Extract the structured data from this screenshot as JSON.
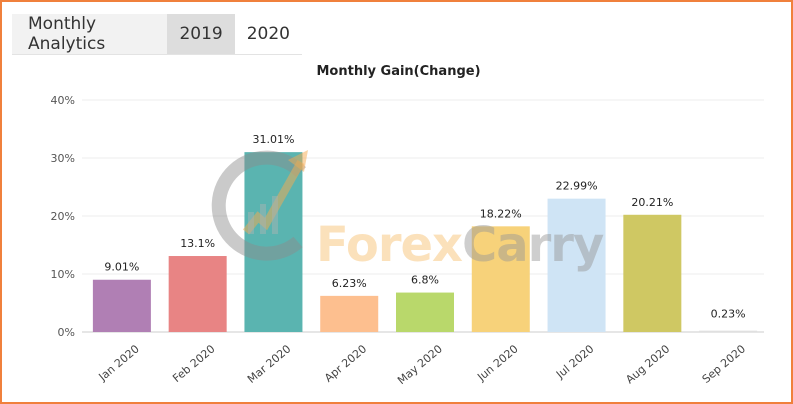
{
  "header": {
    "title": "Monthly Analytics",
    "tabs": [
      {
        "label": "2019",
        "active": true
      },
      {
        "label": "2020",
        "active": false
      }
    ]
  },
  "watermark": {
    "word1": "Forex",
    "word2": "Carry"
  },
  "chart_data": {
    "type": "bar",
    "title": "Monthly Gain(Change)",
    "xlabel": "",
    "ylabel": "",
    "categories": [
      "Jan 2020",
      "Feb 2020",
      "Mar 2020",
      "Apr 2020",
      "May 2020",
      "Jun 2020",
      "Jul 2020",
      "Aug 2020",
      "Sep 2020"
    ],
    "values": [
      9.01,
      13.1,
      31.01,
      6.23,
      6.8,
      18.22,
      22.99,
      20.21,
      0.23
    ],
    "data_labels": [
      "9.01%",
      "13.1%",
      "31.01%",
      "6.23%",
      "6.8%",
      "18.22%",
      "22.99%",
      "20.21%",
      "0.23%"
    ],
    "colors": [
      "#b07fb4",
      "#e88484",
      "#5ab4b0",
      "#fdbf8f",
      "#b9d86b",
      "#f7d27a",
      "#cfe4f5",
      "#cfc863",
      "#e0e0e0"
    ],
    "ylim": [
      0,
      40
    ],
    "yticks": [
      0,
      10,
      20,
      30,
      40
    ],
    "ytick_labels": [
      "0%",
      "10%",
      "20%",
      "30%",
      "40%"
    ],
    "grid": true,
    "legend": "none"
  }
}
